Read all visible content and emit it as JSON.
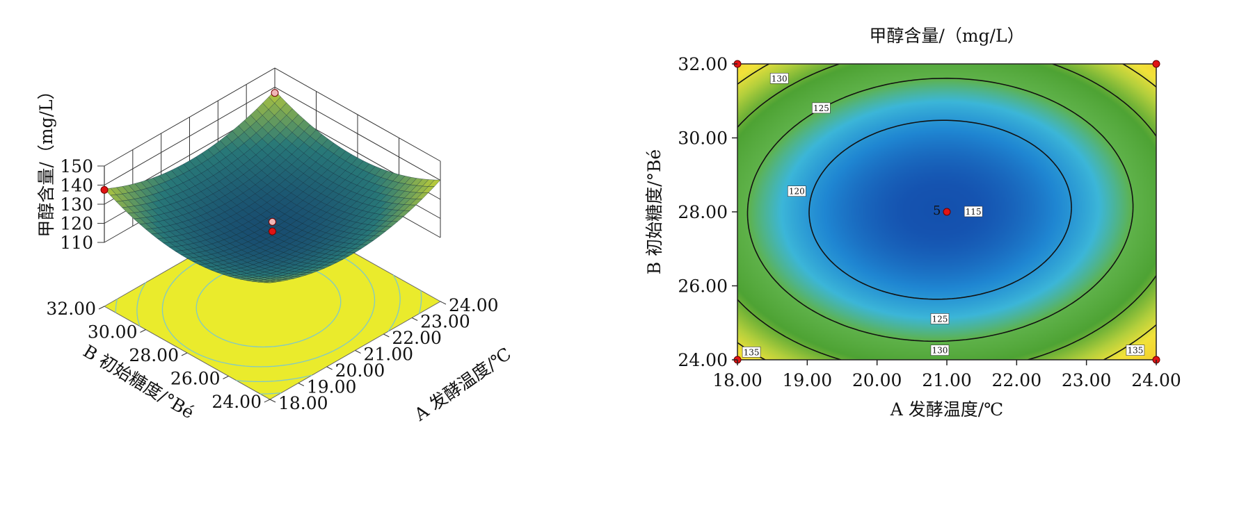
{
  "chart_data": [
    {
      "type": "surface",
      "zlabel": "甲醇含量/（mg/L）",
      "xlabel": "A 发酵温度/℃",
      "ylabel": "B 初始糖度/°Bé",
      "z_ticks": [
        "150",
        "140",
        "130",
        "120",
        "110"
      ],
      "x_ticks": [
        "18.00",
        "19.00",
        "20.00",
        "21.00",
        "22.00",
        "23.00",
        "24.00"
      ],
      "y_ticks": [
        "24.00",
        "26.00",
        "28.00",
        "30.00",
        "32.00"
      ],
      "xlim": [
        18,
        24
      ],
      "ylim": [
        24,
        32
      ],
      "zlim": [
        110,
        150
      ],
      "design_points": [
        {
          "A": 18,
          "B": 32,
          "z": 137.5
        },
        {
          "A": 24,
          "B": 32,
          "z": 137
        },
        {
          "A": 21,
          "B": 28,
          "z": 119.5
        },
        {
          "A": 21,
          "B": 28,
          "z": 114.5
        }
      ]
    },
    {
      "type": "contour",
      "title": "甲醇含量/（mg/L）",
      "xlabel": "A 发酵温度/℃",
      "ylabel": "B 初始糖度/°Bé",
      "x_ticks": [
        "18.00",
        "19.00",
        "20.00",
        "21.00",
        "22.00",
        "23.00",
        "24.00"
      ],
      "y_ticks": [
        "24.00",
        "26.00",
        "28.00",
        "30.00",
        "32.00"
      ],
      "xlim": [
        18,
        24
      ],
      "ylim": [
        24,
        32
      ],
      "levels": [
        115,
        120,
        125,
        130,
        135
      ],
      "contour_labels": [
        {
          "text": "130",
          "A": 18.6,
          "B": 31.6
        },
        {
          "text": "125",
          "A": 19.2,
          "B": 30.8
        },
        {
          "text": "120",
          "A": 18.85,
          "B": 28.55
        },
        {
          "text": "115",
          "A": 21.38,
          "B": 28.0
        },
        {
          "text": "125",
          "A": 20.9,
          "B": 25.1
        },
        {
          "text": "130",
          "A": 20.9,
          "B": 24.25
        },
        {
          "text": "135",
          "A": 18.2,
          "B": 24.2
        },
        {
          "text": "135",
          "A": 23.7,
          "B": 24.25
        }
      ],
      "center_point_label": "5",
      "design_points": [
        {
          "A": 18,
          "B": 32
        },
        {
          "A": 24,
          "B": 32
        },
        {
          "A": 18,
          "B": 24
        },
        {
          "A": 24,
          "B": 24
        },
        {
          "A": 21,
          "B": 28
        }
      ],
      "colors": {
        "high": "#f2e23a",
        "mid": "#5aa83a",
        "low": "#0d3f9c",
        "point": "#e01414"
      }
    }
  ]
}
